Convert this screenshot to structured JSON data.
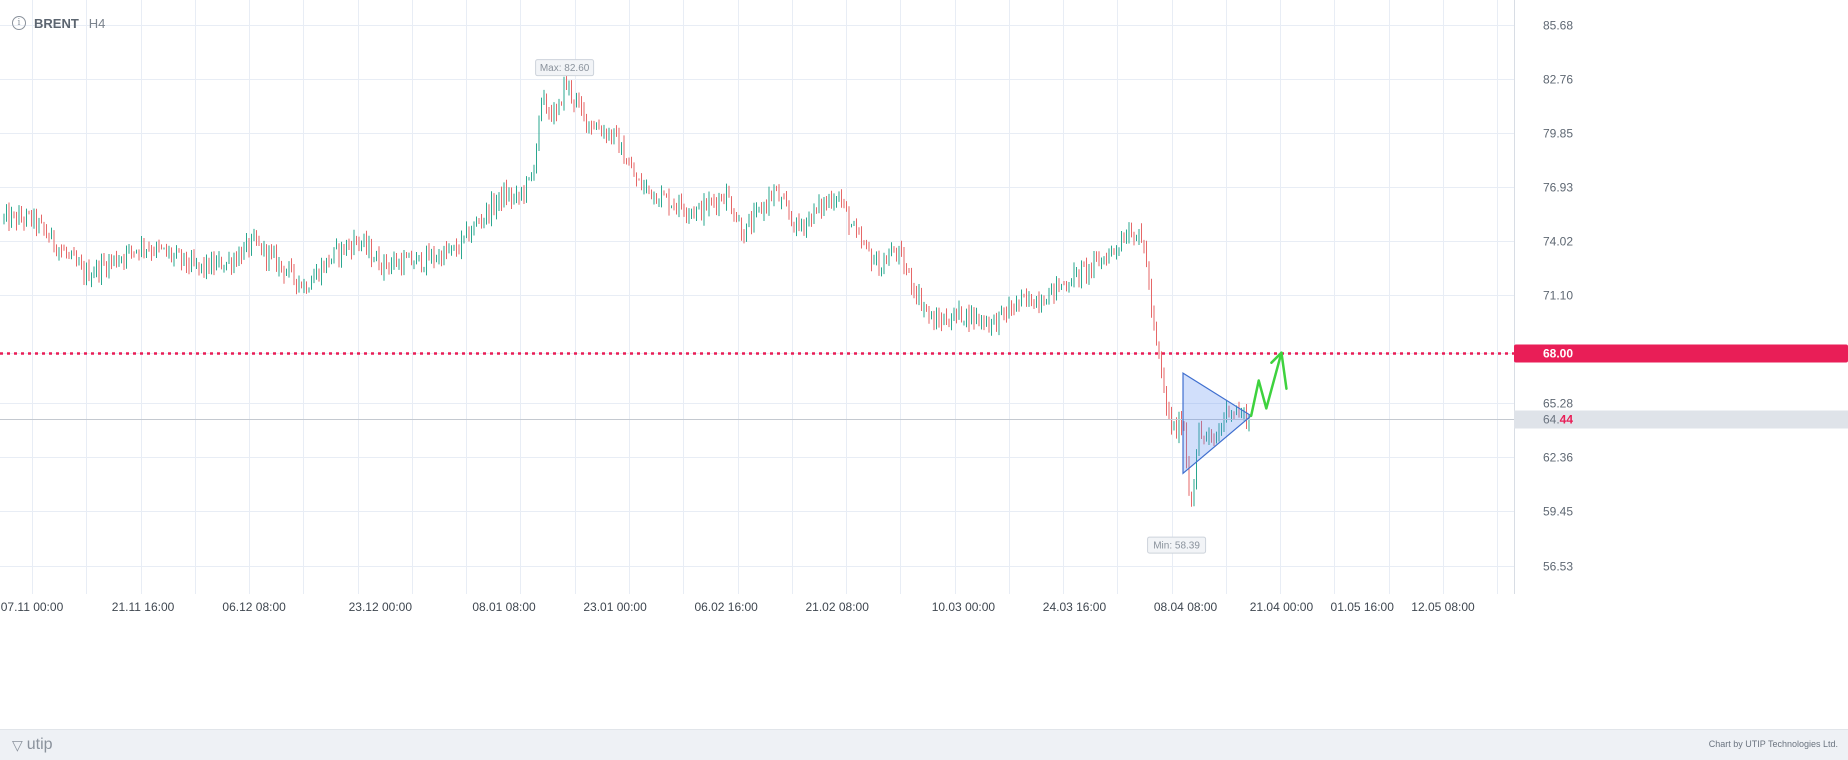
{
  "header": {
    "symbol": "BRENT",
    "timeframe": "H4"
  },
  "footer": {
    "brand": "utip",
    "credit": "Chart by UTIP Technologies Ltd."
  },
  "chart_data": {
    "type": "candlestick",
    "ylim": [
      55.0,
      87.0
    ],
    "y_ticks": [
      "85.68",
      "82.76",
      "79.85",
      "76.93",
      "74.02",
      "71.10",
      "68.00",
      "65.28",
      "62.36",
      "59.45",
      "56.53"
    ],
    "x_ticks": [
      "07.11 00:00",
      "21.11 16:00",
      "06.12 08:00",
      "23.12 00:00",
      "08.01 08:00",
      "23.01 00:00",
      "06.02 16:00",
      "21.02 08:00",
      "10.03 00:00",
      "24.03 16:00",
      "08.04 08:00",
      "21.04 00:00",
      "01.05 16:00",
      "12.05 08:00"
    ],
    "price_path": [
      [
        "07.11 00:00",
        75.2
      ],
      [
        "14.11 00:00",
        72.2
      ],
      [
        "21.11 16:00",
        73.8
      ],
      [
        "25.11 00:00",
        73.3
      ],
      [
        "29.11 00:00",
        72.5
      ],
      [
        "03.12 00:00",
        72.9
      ],
      [
        "06.12 08:00",
        73.9
      ],
      [
        "13.12 00:00",
        71.6
      ],
      [
        "17.12 00:00",
        73.3
      ],
      [
        "20.12 00:00",
        74.1
      ],
      [
        "23.12 00:00",
        72.8
      ],
      [
        "28.12 00:00",
        72.9
      ],
      [
        "02.01 00:00",
        73.5
      ],
      [
        "05.01 00:00",
        75.1
      ],
      [
        "08.01 08:00",
        76.5
      ],
      [
        "10.01 00:00",
        76.2
      ],
      [
        "12.01 00:00",
        77.4
      ],
      [
        "13.01 08:00",
        81.5
      ],
      [
        "15.01 08:00",
        80.6
      ],
      [
        "16.01 08:00",
        82.6
      ],
      [
        "19.01 00:00",
        80.6
      ],
      [
        "23.01 00:00",
        79.6
      ],
      [
        "26.01 00:00",
        77.1
      ],
      [
        "30.01 00:00",
        76.2
      ],
      [
        "03.02 00:00",
        75.6
      ],
      [
        "06.02 16:00",
        76.6
      ],
      [
        "09.02 00:00",
        74.4
      ],
      [
        "13.02 00:00",
        76.7
      ],
      [
        "16.02 00:00",
        74.7
      ],
      [
        "21.02 08:00",
        76.6
      ],
      [
        "24.02 00:00",
        74.1
      ],
      [
        "27.02 00:00",
        72.6
      ],
      [
        "01.03 00:00",
        73.6
      ],
      [
        "04.03 00:00",
        71.1
      ],
      [
        "06.03 00:00",
        69.6
      ],
      [
        "10.03 00:00",
        70.1
      ],
      [
        "14.03 00:00",
        69.6
      ],
      [
        "17.03 00:00",
        70.6
      ],
      [
        "21.03 00:00",
        71.1
      ],
      [
        "24.03 16:00",
        72.1
      ],
      [
        "27.03 00:00",
        72.6
      ],
      [
        "30.03 00:00",
        73.6
      ],
      [
        "01.04 00:00",
        74.8
      ],
      [
        "03.04 00:00",
        73.6
      ],
      [
        "04.04 00:00",
        69.6
      ],
      [
        "06.04 00:00",
        64.6
      ],
      [
        "07.04 00:00",
        63.6
      ],
      [
        "08.04 00:00",
        64.6
      ],
      [
        "09.04 00:00",
        59.6
      ],
      [
        "10.04 00:00",
        63.6
      ],
      [
        "12.04 00:00",
        63.1
      ],
      [
        "14.04 00:00",
        65.1
      ],
      [
        "16.04 00:00",
        64.6
      ],
      [
        "17.04 00:00",
        64.44
      ]
    ],
    "max_value": 82.6,
    "min_value": 58.39,
    "current_price": {
      "prefix": "64.",
      "suffix": "44",
      "value": 64.44
    },
    "annotations": {
      "max_label": "Max: 82.60",
      "min_label": "Min: 58.39",
      "resistance": {
        "value": 68.0,
        "label": "68.00",
        "color": "#e91e57"
      },
      "triangle_pattern": {
        "points": [
          [
            "08.04 00:00",
            66.9
          ],
          [
            "17.04 00:00",
            64.6
          ],
          [
            "08.04 00:00",
            61.5
          ]
        ],
        "fill": "#5b8def"
      },
      "forecast_arrow": {
        "points": [
          [
            "17.04 00:00",
            64.6
          ],
          [
            "18.04 00:00",
            66.5
          ],
          [
            "19.04 00:00",
            65.0
          ],
          [
            "21.04 00:00",
            68.0
          ]
        ],
        "color": "#3ed23e"
      }
    },
    "colors": {
      "up": "#2aa78f",
      "down": "#e66767",
      "grid": "#e8edf5",
      "current_line": "#c4c9d0"
    },
    "grid": true
  }
}
